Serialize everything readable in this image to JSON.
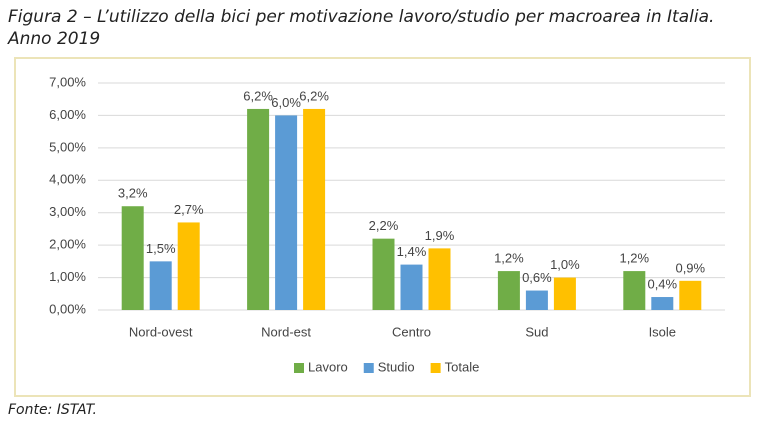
{
  "chart_data": {
    "type": "bar",
    "title": "Figura 2 – L’utilizzo della bici per motivazione lavoro/studio per macroarea in Italia. Anno 2019",
    "source": "Fonte: ISTAT.",
    "categories": [
      "Nord-ovest",
      "Nord-est",
      "Centro",
      "Sud",
      "Isole"
    ],
    "series": [
      {
        "name": "Lavoro",
        "color": "#70ad47",
        "values": [
          3.2,
          6.2,
          2.2,
          1.2,
          1.2
        ],
        "value_labels": [
          "3,2%",
          "6,2%",
          "2,2%",
          "1,2%",
          "1,2%"
        ]
      },
      {
        "name": "Studio",
        "color": "#5b9bd5",
        "values": [
          1.5,
          6.0,
          1.4,
          0.6,
          0.4
        ],
        "value_labels": [
          "1,5%",
          "6,0%",
          "1,4%",
          "0,6%",
          "0,4%"
        ]
      },
      {
        "name": "Totale",
        "color": "#ffc000",
        "values": [
          2.7,
          6.2,
          1.9,
          1.0,
          0.9
        ],
        "value_labels": [
          "2,7%",
          "6,2%",
          "1,9%",
          "1,0%",
          "0,9%"
        ]
      }
    ],
    "ylim": [
      0,
      7
    ],
    "yticks": [
      {
        "value": 0,
        "label": "0,00%"
      },
      {
        "value": 1,
        "label": "1,00%"
      },
      {
        "value": 2,
        "label": "2,00%"
      },
      {
        "value": 3,
        "label": "3,00%"
      },
      {
        "value": 4,
        "label": "4,00%"
      },
      {
        "value": 5,
        "label": "5,00%"
      },
      {
        "value": 6,
        "label": "6,00%"
      },
      {
        "value": 7,
        "label": "7,00%"
      }
    ],
    "grid": true,
    "legend": "bottom"
  }
}
